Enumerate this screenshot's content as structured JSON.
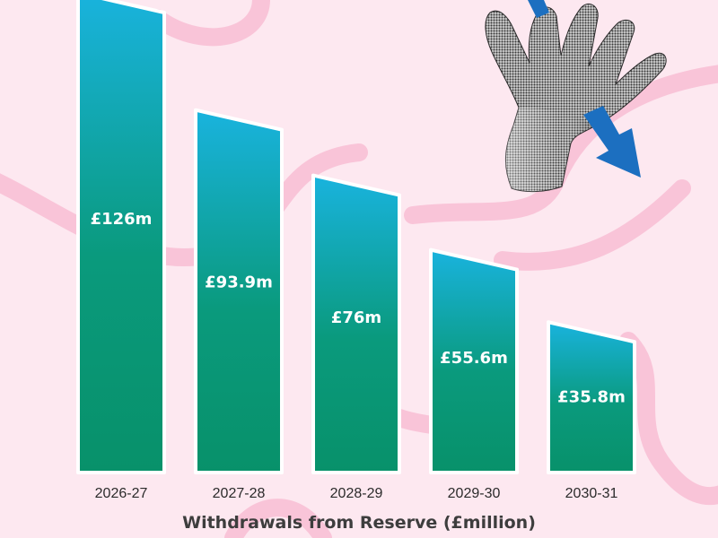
{
  "chart_data": {
    "type": "bar",
    "title": "",
    "xlabel": "Withdrawals from Reserve (£million)",
    "ylabel": "",
    "categories": [
      "2026-27",
      "2027-28",
      "2028-29",
      "2029-30",
      "2030-31"
    ],
    "values": [
      126,
      93.9,
      76,
      55.6,
      35.8
    ],
    "value_labels": [
      "£126m",
      "£93.9m",
      "£76m",
      "£55.6m",
      "£35.8m"
    ],
    "unit": "£m",
    "ylim": [
      0,
      126
    ],
    "grid": false,
    "legend": "none"
  },
  "colors": {
    "background": "#fde8f0",
    "background_swirl": "#f9c4d8",
    "bar_top": "#19b3de",
    "bar_bottom": "#08916a",
    "bar_outline": "#ffffff",
    "arrow": "#1c6fc0"
  },
  "decoration": {
    "icon": "halftone-hand-icon",
    "arrow_icon": "downward-arrow-icon"
  }
}
